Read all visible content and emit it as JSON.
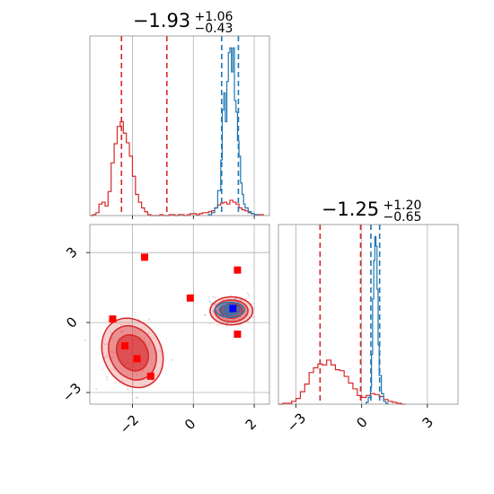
{
  "colors": {
    "red": "#d62728",
    "blue": "#1f77b4",
    "marker_red": "#ff0000",
    "marker_blue": "#0000ff",
    "grid": "#b0b0b0"
  },
  "chart_data": [
    {
      "panel": "top-left",
      "type": "histogram",
      "title": {
        "main": "−1.93",
        "plus": "+1.06",
        "minus": "−0.43"
      },
      "xlim": [
        -3.4,
        2.5
      ],
      "grid": true,
      "series": [
        {
          "color": "red",
          "bins": [
            [
              -3.4,
              0
            ],
            [
              -3.3,
              1
            ],
            [
              -3.2,
              3
            ],
            [
              -3.1,
              12
            ],
            [
              -3.0,
              14
            ],
            [
              -2.9,
              10
            ],
            [
              -2.8,
              25
            ],
            [
              -2.7,
              55
            ],
            [
              -2.6,
              75
            ],
            [
              -2.5,
              93
            ],
            [
              -2.4,
              98
            ],
            [
              -2.3,
              86
            ],
            [
              -2.2,
              76
            ],
            [
              -2.1,
              62
            ],
            [
              -2.0,
              41
            ],
            [
              -1.9,
              22
            ],
            [
              -1.8,
              14
            ],
            [
              -1.7,
              8
            ],
            [
              -1.6,
              4
            ],
            [
              -1.5,
              1
            ],
            [
              -1.4,
              0
            ],
            [
              -1.3,
              0
            ],
            [
              -1.2,
              0
            ],
            [
              -1.1,
              1
            ],
            [
              -1.0,
              0
            ],
            [
              -0.9,
              0
            ],
            [
              -0.8,
              1
            ],
            [
              -0.7,
              1
            ],
            [
              -0.6,
              0
            ],
            [
              -0.5,
              1
            ],
            [
              -0.4,
              1
            ],
            [
              -0.3,
              0
            ],
            [
              -0.2,
              1
            ],
            [
              -0.1,
              2
            ],
            [
              0.0,
              2
            ],
            [
              0.1,
              1
            ],
            [
              0.2,
              2
            ],
            [
              0.3,
              3
            ],
            [
              0.4,
              3
            ],
            [
              0.5,
              4
            ],
            [
              0.6,
              5
            ],
            [
              0.7,
              8
            ],
            [
              0.8,
              11
            ],
            [
              0.9,
              13
            ],
            [
              1.0,
              14
            ],
            [
              1.1,
              12
            ],
            [
              1.2,
              16
            ],
            [
              1.3,
              14
            ],
            [
              1.4,
              12
            ],
            [
              1.5,
              8
            ],
            [
              1.6,
              6
            ],
            [
              1.7,
              5
            ],
            [
              1.8,
              3
            ],
            [
              1.9,
              2
            ],
            [
              2.0,
              1
            ],
            [
              2.1,
              1
            ],
            [
              2.2,
              1
            ]
          ],
          "quantiles": [
            -2.36,
            -0.87
          ]
        },
        {
          "color": "blue",
          "bins": [
            [
              0.5,
              1
            ],
            [
              0.6,
              3
            ],
            [
              0.7,
              8
            ],
            [
              0.8,
              26
            ],
            [
              0.9,
              58
            ],
            [
              0.95,
              110
            ],
            [
              1.0,
              128
            ],
            [
              1.05,
              98
            ],
            [
              1.1,
              140
            ],
            [
              1.15,
              170
            ],
            [
              1.2,
              175
            ],
            [
              1.25,
              150
            ],
            [
              1.3,
              175
            ],
            [
              1.35,
              120
            ],
            [
              1.4,
              108
            ],
            [
              1.45,
              78
            ],
            [
              1.5,
              62
            ],
            [
              1.55,
              34
            ],
            [
              1.6,
              22
            ],
            [
              1.65,
              12
            ],
            [
              1.7,
              8
            ],
            [
              1.8,
              4
            ],
            [
              1.9,
              2
            ],
            [
              2.0,
              1
            ]
          ],
          "quantiles": [
            0.93,
            1.48
          ]
        }
      ],
      "band_max": 180
    },
    {
      "panel": "bottom-left",
      "type": "scatter",
      "xlim": [
        -3.4,
        2.5
      ],
      "ylim": [
        -3.5,
        4.2
      ],
      "grid": true,
      "xticks": [
        -2,
        0,
        2
      ],
      "yticks": [
        -3,
        0,
        3
      ],
      "xtick_labels": [
        "−2",
        "0",
        "2"
      ],
      "ytick_labels": [
        "−3",
        "0",
        "3"
      ],
      "markers_red": [
        {
          "x": -1.6,
          "y": 2.8
        },
        {
          "x": 1.45,
          "y": 2.25
        },
        {
          "x": -0.1,
          "y": 1.05
        },
        {
          "x": -2.65,
          "y": 0.15
        },
        {
          "x": 1.45,
          "y": -0.5
        },
        {
          "x": -2.25,
          "y": -1.0
        },
        {
          "x": -1.85,
          "y": -1.55
        },
        {
          "x": -1.4,
          "y": -2.3
        }
      ],
      "markers_blue": [
        {
          "x": 1.3,
          "y": 0.6
        }
      ],
      "red_contours": [
        {
          "cx": -2.0,
          "cy": -1.3,
          "rx": 0.95,
          "ry": 1.55,
          "rot": -28
        },
        {
          "cx": 1.25,
          "cy": 0.5,
          "rx": 0.7,
          "ry": 0.6,
          "rot": 0
        }
      ],
      "blue_contour": {
        "cx": 1.2,
        "cy": 0.55,
        "rx": 0.48,
        "ry": 0.32,
        "rot": 0
      }
    },
    {
      "panel": "bottom-right",
      "type": "histogram",
      "title": {
        "main": "−1.25",
        "plus": "+1.20",
        "minus": "−0.65"
      },
      "xlim": [
        -3.8,
        4.4
      ],
      "grid": true,
      "xticks": [
        -3,
        0,
        3
      ],
      "xtick_labels": [
        "−3",
        "0",
        "3"
      ],
      "series": [
        {
          "color": "red",
          "bins": [
            [
              -3.8,
              0
            ],
            [
              -3.6,
              1
            ],
            [
              -3.4,
              1
            ],
            [
              -3.2,
              3
            ],
            [
              -3.0,
              6
            ],
            [
              -2.8,
              13
            ],
            [
              -2.6,
              21
            ],
            [
              -2.4,
              33
            ],
            [
              -2.2,
              38
            ],
            [
              -2.0,
              42
            ],
            [
              -1.8,
              41
            ],
            [
              -1.6,
              46
            ],
            [
              -1.4,
              41
            ],
            [
              -1.2,
              36
            ],
            [
              -1.0,
              35
            ],
            [
              -0.8,
              29
            ],
            [
              -0.6,
              22
            ],
            [
              -0.4,
              16
            ],
            [
              -0.2,
              9
            ],
            [
              0.0,
              7
            ],
            [
              0.2,
              9
            ],
            [
              0.4,
              11
            ],
            [
              0.6,
              10
            ],
            [
              0.8,
              8
            ],
            [
              1.0,
              5
            ],
            [
              1.2,
              3
            ],
            [
              1.4,
              2
            ],
            [
              1.6,
              1
            ],
            [
              1.8,
              0
            ]
          ],
          "quantiles": [
            -1.9,
            -0.05
          ]
        },
        {
          "color": "blue",
          "bins": [
            [
              0.2,
              2
            ],
            [
              0.3,
              7
            ],
            [
              0.4,
              18
            ],
            [
              0.45,
              52
            ],
            [
              0.5,
              110
            ],
            [
              0.55,
              150
            ],
            [
              0.6,
              175
            ],
            [
              0.65,
              165
            ],
            [
              0.7,
              120
            ],
            [
              0.75,
              62
            ],
            [
              0.8,
              30
            ],
            [
              0.9,
              11
            ],
            [
              1.0,
              3
            ],
            [
              1.1,
              1
            ]
          ],
          "quantiles": [
            0.42,
            0.82
          ]
        }
      ],
      "band_max": 180
    }
  ]
}
